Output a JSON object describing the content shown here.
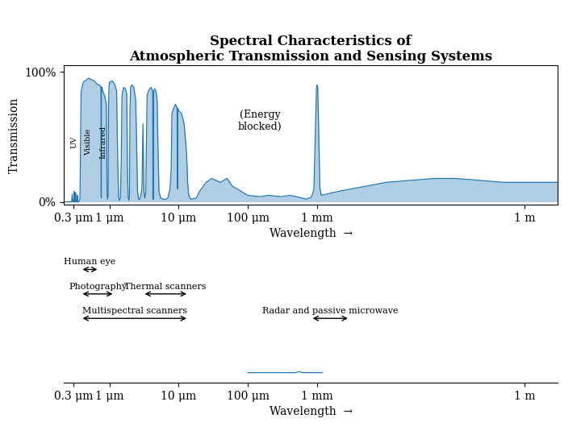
{
  "chart_data": [
    {
      "type": "area",
      "title": "Spectral Characteristics of\nAtmospheric Transmission and Sensing Systems",
      "ylabel": "Transmission",
      "xlabel": "Wavelength  →",
      "log": "x",
      "xlim": [
        0.22,
        3000000
      ],
      "xticks": [
        {
          "value": 0.3,
          "label": "0.3 μm"
        },
        {
          "value": 1,
          "label": "1 μm"
        },
        {
          "value": 10,
          "label": "10 μm"
        },
        {
          "value": 100,
          "label": "100 μm"
        },
        {
          "value": 1000,
          "label": "1 mm"
        },
        {
          "value": 1000000,
          "label": "1 m"
        }
      ],
      "ylim": [
        -0.02,
        1.05
      ],
      "yticks": [
        {
          "value": 0,
          "label": "0%"
        },
        {
          "value": 1,
          "label": "100%"
        }
      ],
      "x": [
        0.22,
        0.27,
        0.285,
        0.29,
        0.295,
        0.305,
        0.31,
        0.315,
        0.32,
        0.325,
        0.33,
        0.34,
        0.345,
        0.35,
        0.36,
        0.375,
        0.39,
        0.42,
        0.5,
        0.6,
        0.68,
        0.72,
        0.755,
        0.76,
        0.763,
        0.768,
        0.78,
        0.8,
        0.85,
        0.905,
        0.925,
        0.94,
        0.96,
        0.97,
        0.985,
        1.0,
        1.1,
        1.2,
        1.27,
        1.32,
        1.36,
        1.4,
        1.44,
        1.48,
        1.52,
        1.6,
        1.7,
        1.78,
        1.83,
        1.87,
        1.92,
        1.95,
        1.98,
        2.02,
        2.1,
        2.25,
        2.4,
        2.48,
        2.55,
        2.65,
        2.75,
        2.85,
        2.95,
        3.05,
        3.15,
        3.25,
        3.35,
        3.45,
        3.5,
        3.8,
        4.0,
        4.22,
        4.25,
        4.3,
        4.3,
        4.35,
        4.5,
        4.7,
        4.9,
        5.0,
        5.2,
        5.5,
        6.0,
        6.5,
        7.0,
        7.5,
        7.8,
        8.0,
        8.5,
        9.0,
        9.5,
        9.58,
        9.62,
        9.66,
        9.7,
        10.0,
        11.0,
        12.0,
        13.0,
        13.5,
        14.0,
        15.0,
        18.0,
        20.0,
        25.0,
        30.0,
        40.0,
        50.0,
        60.0,
        70.0,
        80.0,
        100.0,
        150.0,
        200.0,
        300.0,
        400.0,
        500.0,
        600.0,
        700.0,
        750.0,
        800.0,
        850.0,
        900.0,
        950.0,
        980.0,
        1000.0,
        1020.0,
        1050.0,
        1100.0,
        1150.0,
        2000.0,
        5000.0,
        10000.0,
        50000.0,
        100000.0,
        500000.0,
        1000000.0,
        2000000.0,
        3000000.0
      ],
      "values": [
        0.0,
        0.0,
        0.0,
        0.06,
        0.0,
        0.0,
        0.08,
        0.0,
        0.0,
        0.07,
        0.0,
        0.0,
        0.05,
        0.0,
        0.0,
        0.02,
        0.85,
        0.92,
        0.95,
        0.93,
        0.9,
        0.9,
        0.88,
        0.05,
        0.03,
        0.88,
        0.88,
        0.85,
        0.82,
        0.75,
        0.05,
        0.02,
        0.05,
        0.7,
        0.88,
        0.92,
        0.93,
        0.9,
        0.85,
        0.3,
        0.03,
        0.01,
        0.03,
        0.3,
        0.82,
        0.88,
        0.87,
        0.83,
        0.2,
        0.03,
        0.01,
        0.05,
        0.7,
        0.88,
        0.9,
        0.88,
        0.78,
        0.4,
        0.08,
        0.02,
        0.02,
        0.05,
        0.1,
        0.6,
        0.08,
        0.03,
        0.08,
        0.55,
        0.82,
        0.87,
        0.88,
        0.85,
        0.02,
        0.85,
        0.02,
        0.85,
        0.87,
        0.85,
        0.78,
        0.5,
        0.08,
        0.03,
        0.02,
        0.02,
        0.03,
        0.1,
        0.25,
        0.68,
        0.72,
        0.75,
        0.72,
        0.15,
        0.1,
        0.15,
        0.72,
        0.7,
        0.68,
        0.6,
        0.38,
        0.15,
        0.05,
        0.02,
        0.03,
        0.08,
        0.15,
        0.18,
        0.15,
        0.18,
        0.12,
        0.1,
        0.08,
        0.05,
        0.04,
        0.05,
        0.04,
        0.05,
        0.04,
        0.03,
        0.02,
        0.03,
        0.03,
        0.05,
        0.1,
        0.6,
        0.88,
        0.9,
        0.88,
        0.6,
        0.1,
        0.05,
        0.08,
        0.12,
        0.15,
        0.18,
        0.18,
        0.15,
        0.15,
        0.15,
        0.15
      ],
      "annotations": [
        {
          "text": "UV",
          "x": 0.31
        },
        {
          "text": "Visible",
          "x": 0.5
        },
        {
          "text": "Infrared",
          "x": 0.82
        },
        {
          "text": "(Energy\nblocked)",
          "x": 150
        }
      ]
    },
    {
      "type": "range",
      "log": "x",
      "xlim": [
        0.22,
        3000000
      ],
      "tick_labels": false,
      "rows": [
        [
          {
            "label": "Human eye",
            "start": 0.38,
            "end": 0.72
          }
        ],
        [
          {
            "label": "Photography",
            "start": 0.38,
            "end": 1.2
          },
          {
            "label": "Thermal scanners",
            "start": 3.0,
            "end": 14.0
          }
        ],
        [
          {
            "label": "Multispectral scanners",
            "start": 0.38,
            "end": 14.0
          },
          {
            "label": "Radar and passive microwave",
            "start": 800.0,
            "end": 3000.0
          }
        ]
      ]
    },
    {
      "type": "line",
      "xlabel": "Wavelength  →",
      "log": "x",
      "xlim": [
        0.22,
        3000000
      ],
      "xticks": [
        {
          "value": 0.3,
          "label": "0.3 μm"
        },
        {
          "value": 1,
          "label": "1 μm"
        },
        {
          "value": 10,
          "label": "10 μm"
        },
        {
          "value": 100,
          "label": "100 μm"
        },
        {
          "value": 1000,
          "label": "1 mm"
        },
        {
          "value": 1000000,
          "label": "1 m"
        }
      ],
      "ylim": [
        -0.5,
        1.0
      ],
      "tick_labels": "x",
      "x": [
        100,
        200,
        300,
        380,
        430,
        480,
        510,
        530,
        550,
        570,
        590,
        620,
        660,
        720,
        800,
        1200
      ],
      "values": [
        0,
        0,
        0,
        0,
        0,
        0,
        0.015,
        0.035,
        0.06,
        0.035,
        0.015,
        0,
        0,
        0,
        0,
        0
      ]
    }
  ]
}
